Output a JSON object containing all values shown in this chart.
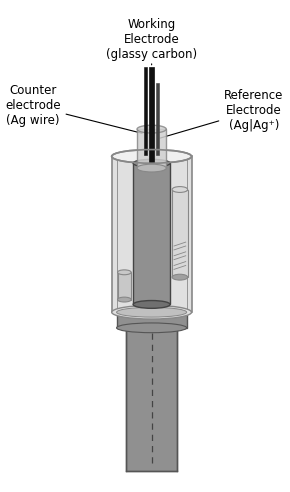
{
  "labels": {
    "working": "Working\nElectrode\n(glassy carbon)",
    "counter": "Counter\nelectrode\n(Ag wire)",
    "reference": "Reference\nElectrode\n(Ag|Ag⁺)"
  },
  "colors": {
    "background": "#ffffff",
    "outer_cyl_fill": "#e0e0e0",
    "outer_cyl_edge": "#888888",
    "inner_body_fill": "#909090",
    "inner_body_edge": "#444444",
    "dark_rod": "#111111",
    "medium_rod": "#555555",
    "glass_collar_fill": "#d0d0d0",
    "glass_collar_edge": "#888888",
    "ref_tube_fill": "#d8d8d8",
    "ref_tube_edge": "#888888",
    "small_cyl_fill": "#c8c8c8",
    "small_cyl_edge": "#888888",
    "flange_fill": "#909090",
    "flange_edge": "#555555",
    "sq_tube_fill": "#909090",
    "sq_tube_edge": "#555555",
    "dashed": "#444444",
    "text_color": "#000000",
    "line_color": "#000000"
  },
  "font_size": 8.5
}
